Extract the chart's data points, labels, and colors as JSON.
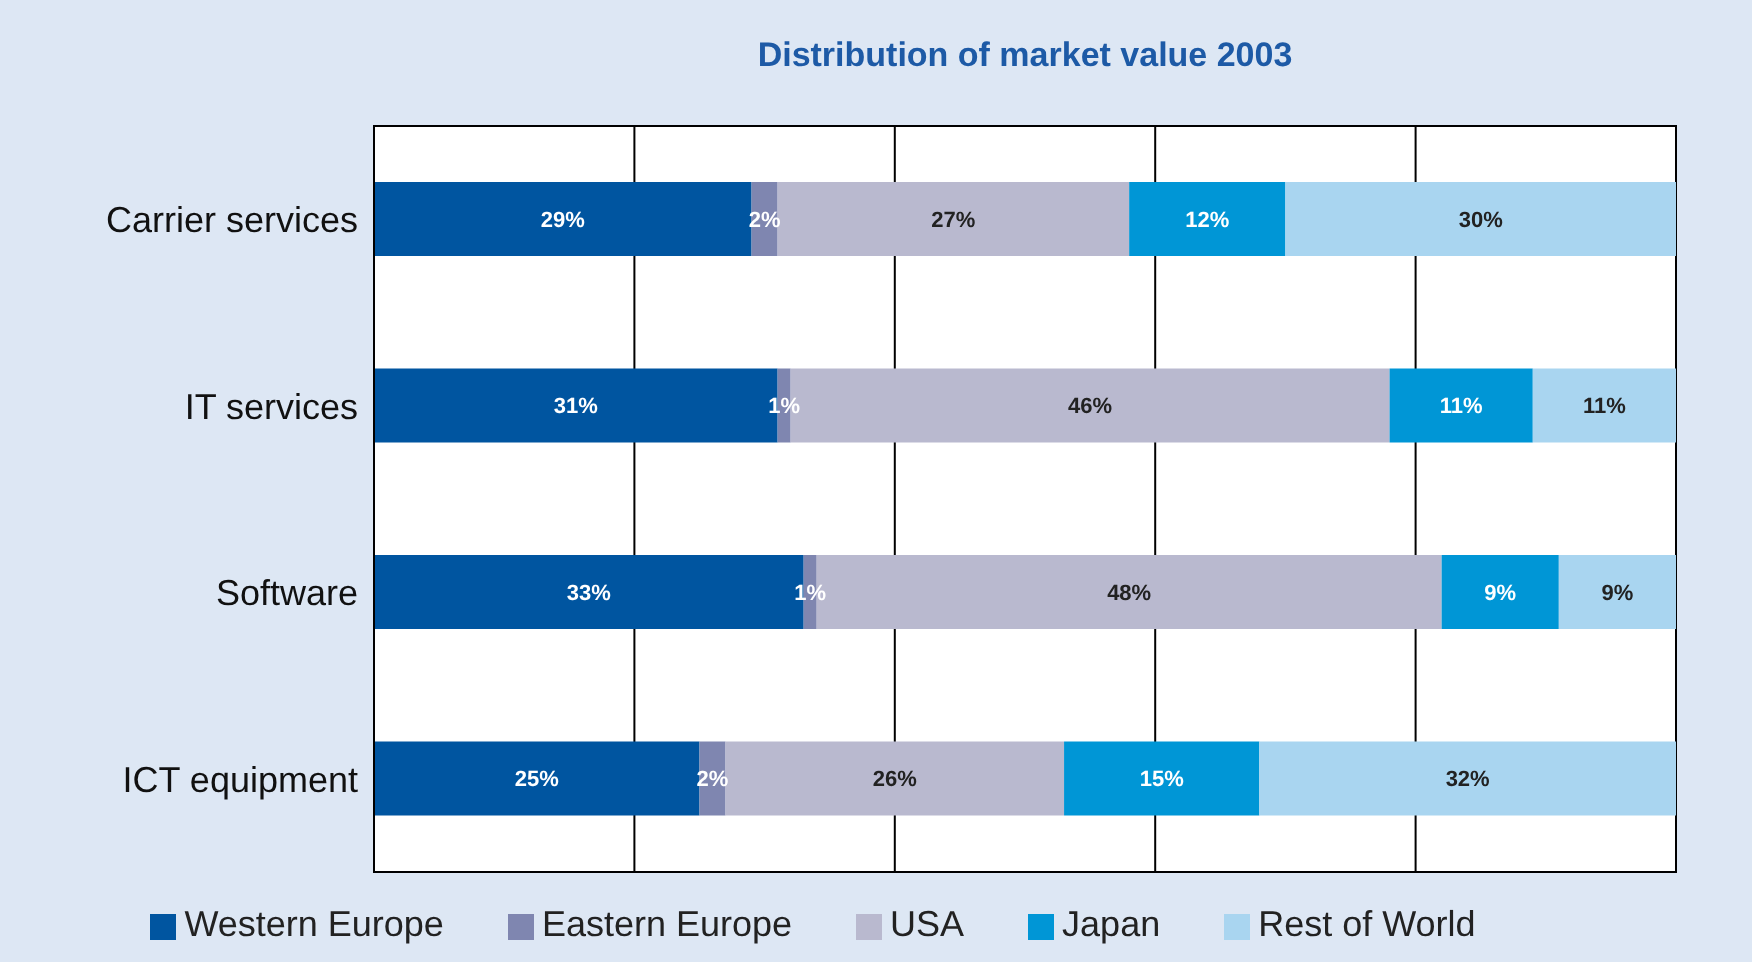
{
  "chart_data": {
    "type": "bar",
    "title": "Distribution of market value 2003",
    "orientation": "horizontal",
    "stacked": true,
    "categories": [
      "Carrier services",
      "IT services",
      "Software",
      "ICT equipment"
    ],
    "series": [
      {
        "name": "Western Europe",
        "color": "#0055a0",
        "values": [
          29,
          31,
          33,
          25
        ],
        "value_labels": [
          "29%",
          "31%",
          "33%",
          "25%"
        ]
      },
      {
        "name": "Eastern Europe",
        "color": "#7f86b0",
        "values": [
          2,
          1,
          1,
          2
        ],
        "value_labels": [
          "2%",
          "1%",
          "1%",
          "2%"
        ]
      },
      {
        "name": "USA",
        "color": "#b9b9cf",
        "values": [
          27,
          46,
          48,
          26
        ],
        "value_labels": [
          "27%",
          "46%",
          "48%",
          "26%"
        ]
      },
      {
        "name": "Japan",
        "color": "#0096d6",
        "values": [
          12,
          11,
          9,
          15
        ],
        "value_labels": [
          "12%",
          "11%",
          "9%",
          "15%"
        ]
      },
      {
        "name": "Rest of World",
        "color": "#a9d5f0",
        "values": [
          30,
          11,
          9,
          32
        ],
        "value_labels": [
          "30%",
          "11%",
          "9%",
          "32%"
        ]
      }
    ],
    "xlim": [
      0,
      100
    ],
    "xticks": [
      {
        "value": 0,
        "label": null
      },
      {
        "value": 20,
        "label": null
      },
      {
        "value": 40,
        "label": null
      },
      {
        "value": 60,
        "label": null
      },
      {
        "value": 80,
        "label": null
      },
      {
        "value": 100,
        "label": null
      }
    ],
    "tick_labels": "y",
    "grid": "x",
    "legend": "bottom"
  }
}
